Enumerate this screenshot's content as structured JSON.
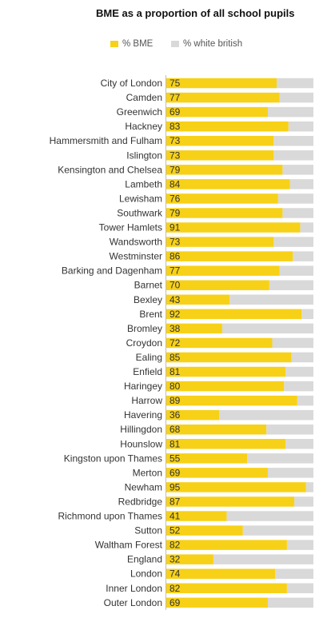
{
  "colors": {
    "bme": "#f7d117",
    "white_british": "#d9d9d9",
    "label": "#333333",
    "value_text": "#333333"
  },
  "chart_data": {
    "type": "bar",
    "orientation": "horizontal",
    "stacked": true,
    "title": "BME as a proportion of all school pupils",
    "legend": {
      "position": "top"
    },
    "xlim": [
      0,
      100
    ],
    "categories": [
      "City of London",
      "Camden",
      "Greenwich",
      "Hackney",
      "Hammersmith and Fulham",
      "Islington",
      "Kensington and Chelsea",
      "Lambeth",
      "Lewisham",
      "Southwark",
      "Tower Hamlets",
      "Wandsworth",
      "Westminster",
      "Barking and Dagenham",
      "Barnet",
      "Bexley",
      "Brent",
      "Bromley",
      "Croydon",
      "Ealing",
      "Enfield",
      "Haringey",
      "Harrow",
      "Havering",
      "Hillingdon",
      "Hounslow",
      "Kingston upon Thames",
      "Merton",
      "Newham",
      "Redbridge",
      "Richmond upon Thames",
      "Sutton",
      "Waltham Forest",
      "England",
      "London",
      "Inner London",
      "Outer London"
    ],
    "series": [
      {
        "name": "% BME",
        "values": [
          75,
          77,
          69,
          83,
          73,
          73,
          79,
          84,
          76,
          79,
          91,
          73,
          86,
          77,
          70,
          43,
          92,
          38,
          72,
          85,
          81,
          80,
          89,
          36,
          68,
          81,
          55,
          69,
          95,
          87,
          41,
          52,
          82,
          32,
          74,
          82,
          69
        ]
      },
      {
        "name": "% white british",
        "values": [
          25,
          23,
          31,
          17,
          27,
          27,
          21,
          16,
          24,
          21,
          9,
          27,
          14,
          23,
          30,
          57,
          8,
          62,
          28,
          15,
          19,
          20,
          11,
          64,
          32,
          19,
          45,
          31,
          5,
          13,
          59,
          48,
          18,
          68,
          26,
          18,
          31
        ]
      }
    ]
  }
}
